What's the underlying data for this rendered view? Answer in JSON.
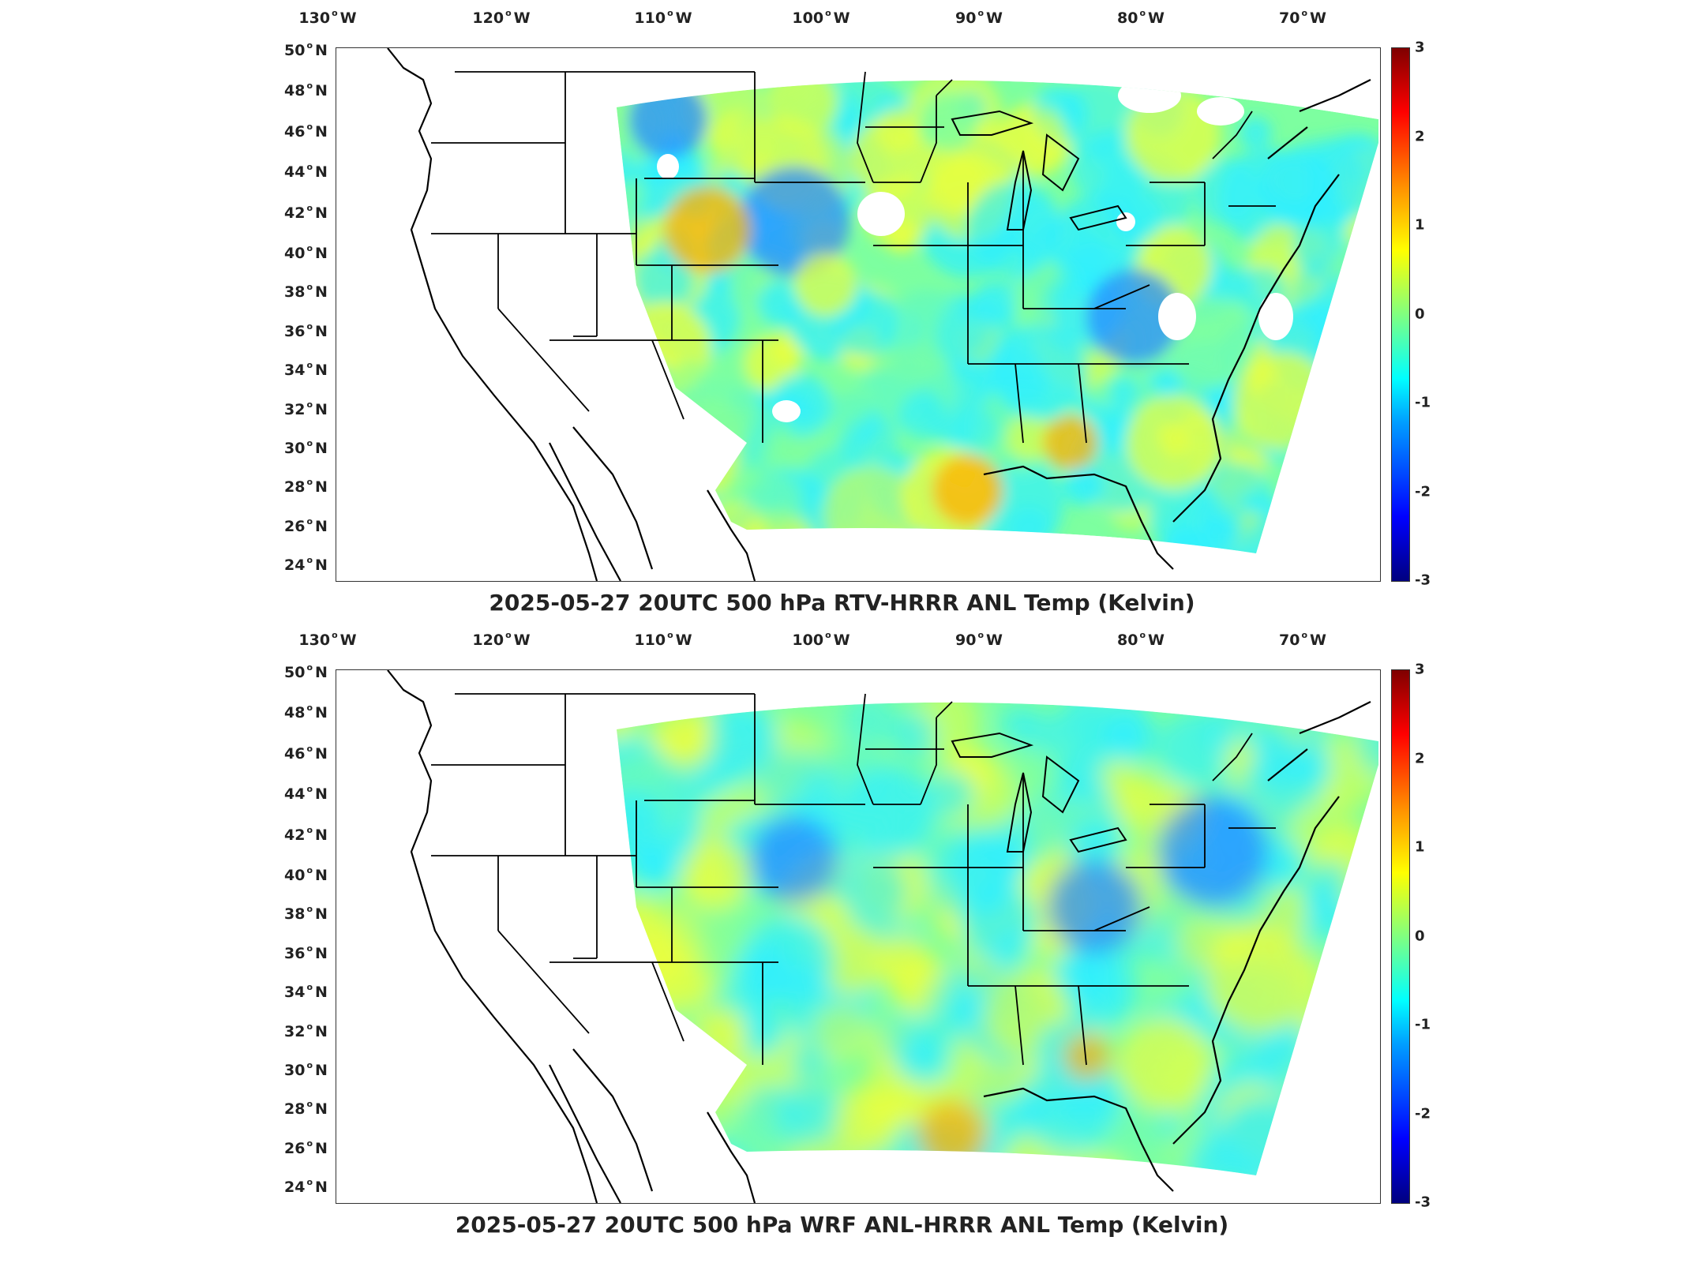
{
  "panels": [
    {
      "title": "2025-05-27 20UTC 500 hPa RTV-HRRR ANL Temp (Kelvin)",
      "lon_labels": [
        "130",
        "120",
        "110",
        "100",
        "90",
        "80",
        "70"
      ],
      "lon_suffix": "W",
      "lat_labels": [
        "50",
        "48",
        "46",
        "44",
        "42",
        "40",
        "38",
        "36",
        "34",
        "32",
        "30",
        "28",
        "26",
        "24"
      ],
      "lat_suffix": "N",
      "colorbar_ticks": [
        "3",
        "2",
        "1",
        "0",
        "-1",
        "-2",
        "-3"
      ],
      "colorbar_range": [
        -3,
        3
      ],
      "field_tone": "mixed-with-white-gaps"
    },
    {
      "title": "2025-05-27 20UTC 500 hPa WRF ANL-HRRR ANL Temp (Kelvin)",
      "lon_labels": [
        "130",
        "120",
        "110",
        "100",
        "90",
        "80",
        "70"
      ],
      "lon_suffix": "W",
      "lat_labels": [
        "50",
        "48",
        "46",
        "44",
        "42",
        "40",
        "38",
        "36",
        "34",
        "32",
        "30",
        "28",
        "26",
        "24"
      ],
      "lat_suffix": "N",
      "colorbar_ticks": [
        "3",
        "2",
        "1",
        "0",
        "-1",
        "-2",
        "-3"
      ],
      "colorbar_range": [
        -3,
        3
      ],
      "field_tone": "smooth"
    }
  ],
  "colors": {
    "field_base": "#7dffa0",
    "field_cyan": "#30f0ff",
    "field_yellow": "#e8ff40",
    "field_orange": "#ffb000",
    "field_blue": "#2a8cff",
    "borders": "#000000"
  }
}
